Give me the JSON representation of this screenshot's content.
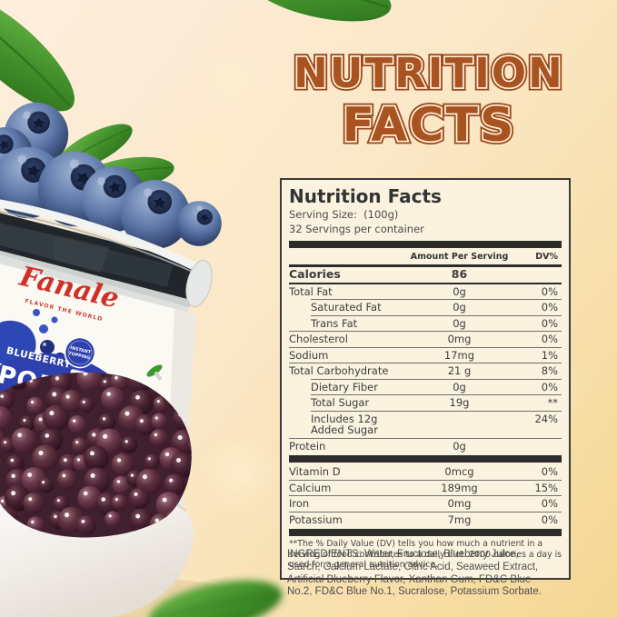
{
  "page": {
    "title_line1": "NUTRITION",
    "title_line2": "FACTS"
  },
  "colors": {
    "title_orange": "#a85320",
    "title_outline": "#9c4718",
    "title_inline_cream": "#fdf2de",
    "background_top": "#fdeedd",
    "background_bottom": "#f5d793",
    "card_background": "#fbf3e0",
    "table_bar": "#2c2c2c",
    "label_blue": "#2e3fae",
    "logo_red": "#d03028",
    "leaf_green": "#3f9a2e",
    "pearl_plum": "#5d3240",
    "blueberry_blue": "#5c77a8"
  },
  "product": {
    "brand": "Fanale",
    "brand_tagline": "FLAVOR THE WORLD",
    "flavor_badge": "BLUEBERRY",
    "product_name": "POPPIN",
    "badge_line1": "INSTANT",
    "badge_line2": "TOPPING"
  },
  "nutrition": {
    "title": "Nutrition Facts",
    "serving_size_label": "Serving Size:",
    "serving_size_value": "(100g)",
    "servings_per_container": "32 Servings per container",
    "col_amount": "Amount Per Serving",
    "col_dv": "DV%",
    "rows": [
      {
        "label": "Calories",
        "amount": "86",
        "dv": "",
        "style": "calories",
        "sep": "cal"
      },
      {
        "label": "Total Fat",
        "amount": "0g",
        "dv": "0%",
        "sep": "indent"
      },
      {
        "label": "Saturated Fat",
        "amount": "0g",
        "dv": "0%",
        "indent": true,
        "sep": "indent"
      },
      {
        "label": "Trans Fat",
        "amount": "0g",
        "dv": "0%",
        "indent": true,
        "sep": "full"
      },
      {
        "label": "Cholesterol",
        "amount": "0mg",
        "dv": "0%",
        "sep": "full"
      },
      {
        "label": "Sodium",
        "amount": "17mg",
        "dv": "1%",
        "sep": "full"
      },
      {
        "label": "Total Carbohydrate",
        "amount": "21 g",
        "dv": "8%",
        "sep": "indent"
      },
      {
        "label": "Dietary Fiber",
        "amount": "0g",
        "dv": "0%",
        "indent": true,
        "sep": "indent"
      },
      {
        "label": "Total Sugar",
        "amount": "19g",
        "dv": "**",
        "indent": true,
        "sep": "indent"
      },
      {
        "label": "Includes 12g Added Sugar",
        "amount": "",
        "dv": "24%",
        "indent": true,
        "sep": "full"
      },
      {
        "label": "Protein",
        "amount": "0g",
        "dv": "",
        "sep": "bar"
      },
      {
        "label": "Vitamin D",
        "amount": "0mcg",
        "dv": "0%",
        "sep": "full"
      },
      {
        "label": "Calcium",
        "amount": "189mg",
        "dv": "15%",
        "sep": "full"
      },
      {
        "label": "Iron",
        "amount": "0mg",
        "dv": "0%",
        "sep": "full"
      },
      {
        "label": "Potassium",
        "amount": "7mg",
        "dv": "0%",
        "sep": "bar"
      }
    ],
    "footnote": "**The % Daily Value (DV) tells you how much a nutrient in a serving of food contributes to a daily diet. 2000 calories a  day is used for a general nutrition advice."
  },
  "ingredients": "INGREDIENTS: Water, Fructose, Blueberry Julce, Starch, Calclum Lactate, Citric Acid, Seaweed Extract, Artificial Blueberry Flavor, Xanthan Gum, FD&C Blue No.2, FD&C Blue No.1, Sucralose, Potassium Sorbate."
}
